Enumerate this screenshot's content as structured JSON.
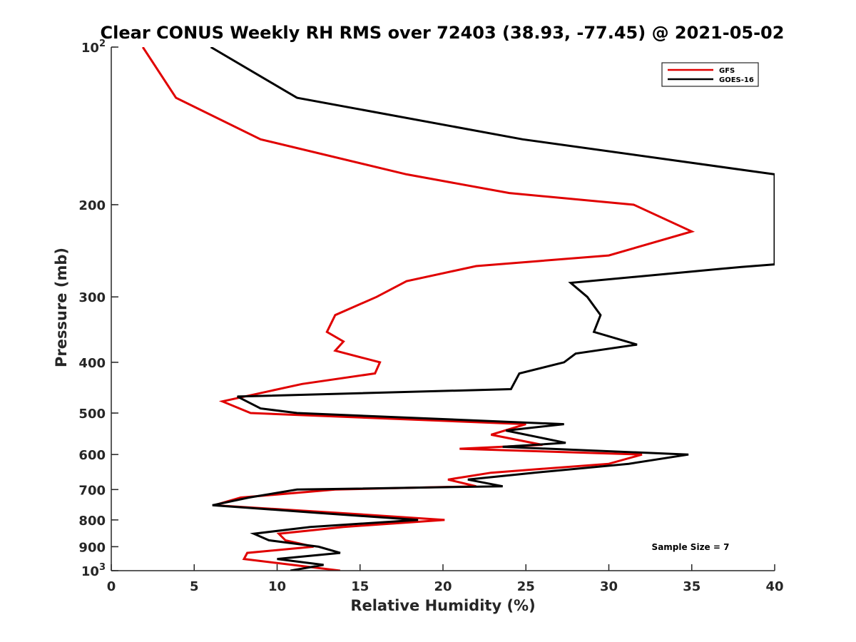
{
  "chart_data": {
    "type": "line",
    "title": "Clear CONUS Weekly RH RMS over 72403 (38.93, -77.45) @ 2021-05-02",
    "xlabel": "Relative Humidity (%)",
    "ylabel": "Pressure (mb)",
    "xlim": [
      0,
      40
    ],
    "ylim": [
      100,
      1000
    ],
    "yscale": "log",
    "y_direction": "reversed",
    "x_ticks": [
      "0",
      "5",
      "10",
      "15",
      "20",
      "25",
      "30",
      "35",
      "40"
    ],
    "y_ticks": [
      {
        "value": 100,
        "base": "10",
        "exp": "2"
      },
      {
        "value": 200,
        "base": "200",
        "exp": ""
      },
      {
        "value": 300,
        "base": "300",
        "exp": ""
      },
      {
        "value": 400,
        "base": "400",
        "exp": ""
      },
      {
        "value": 500,
        "base": "500",
        "exp": ""
      },
      {
        "value": 600,
        "base": "600",
        "exp": ""
      },
      {
        "value": 700,
        "base": "700",
        "exp": ""
      },
      {
        "value": 800,
        "base": "800",
        "exp": ""
      },
      {
        "value": 900,
        "base": "900",
        "exp": ""
      },
      {
        "value": 1000,
        "base": "10",
        "exp": "3"
      }
    ],
    "grid": false,
    "legend_position": "top-right",
    "annotation": "Sample Size = 7",
    "series": [
      {
        "name": "GFS",
        "color": "#e00000",
        "points": [
          [
            1.9,
            100
          ],
          [
            3.9,
            125
          ],
          [
            9.0,
            150
          ],
          [
            17.8,
            175
          ],
          [
            24.0,
            190
          ],
          [
            31.5,
            200
          ],
          [
            35.0,
            225
          ],
          [
            30.0,
            250
          ],
          [
            22.0,
            262
          ],
          [
            17.8,
            280
          ],
          [
            16.0,
            300
          ],
          [
            13.5,
            325
          ],
          [
            13.0,
            350
          ],
          [
            14.0,
            365
          ],
          [
            13.5,
            380
          ],
          [
            16.2,
            400
          ],
          [
            15.9,
            420
          ],
          [
            11.5,
            440
          ],
          [
            6.7,
            475
          ],
          [
            8.4,
            500
          ],
          [
            25.0,
            525
          ],
          [
            22.9,
            550
          ],
          [
            26.0,
            575
          ],
          [
            21.0,
            585
          ],
          [
            32.0,
            600
          ],
          [
            30.0,
            625
          ],
          [
            22.9,
            650
          ],
          [
            20.3,
            670
          ],
          [
            22.0,
            690
          ],
          [
            13.5,
            700
          ],
          [
            7.8,
            725
          ],
          [
            6.2,
            750
          ],
          [
            13.5,
            775
          ],
          [
            20.1,
            800
          ],
          [
            14.0,
            825
          ],
          [
            10.1,
            850
          ],
          [
            10.5,
            875
          ],
          [
            12.2,
            900
          ],
          [
            8.2,
            925
          ],
          [
            8.0,
            950
          ],
          [
            13.8,
            1000
          ]
        ]
      },
      {
        "name": "GOES-16",
        "color": "#000000",
        "points": [
          [
            6.0,
            100
          ],
          [
            11.2,
            125
          ],
          [
            24.8,
            150
          ],
          [
            40.0,
            175
          ],
          [
            40.0,
            260
          ],
          [
            38.0,
            263
          ],
          [
            27.7,
            282
          ],
          [
            28.7,
            300
          ],
          [
            29.5,
            325
          ],
          [
            29.1,
            350
          ],
          [
            31.7,
            370
          ],
          [
            28.0,
            385
          ],
          [
            27.3,
            400
          ],
          [
            24.6,
            420
          ],
          [
            24.1,
            450
          ],
          [
            7.6,
            465
          ],
          [
            9.0,
            490
          ],
          [
            11.2,
            500
          ],
          [
            27.3,
            525
          ],
          [
            23.8,
            540
          ],
          [
            27.4,
            570
          ],
          [
            23.6,
            580
          ],
          [
            34.8,
            600
          ],
          [
            31.2,
            625
          ],
          [
            25.5,
            650
          ],
          [
            21.5,
            670
          ],
          [
            23.6,
            690
          ],
          [
            11.2,
            700
          ],
          [
            8.3,
            725
          ],
          [
            6.1,
            750
          ],
          [
            12.3,
            775
          ],
          [
            18.5,
            800
          ],
          [
            12.0,
            825
          ],
          [
            8.6,
            850
          ],
          [
            9.5,
            875
          ],
          [
            12.5,
            900
          ],
          [
            13.8,
            925
          ],
          [
            10.0,
            950
          ],
          [
            12.8,
            975
          ],
          [
            10.8,
            1000
          ]
        ]
      }
    ]
  }
}
